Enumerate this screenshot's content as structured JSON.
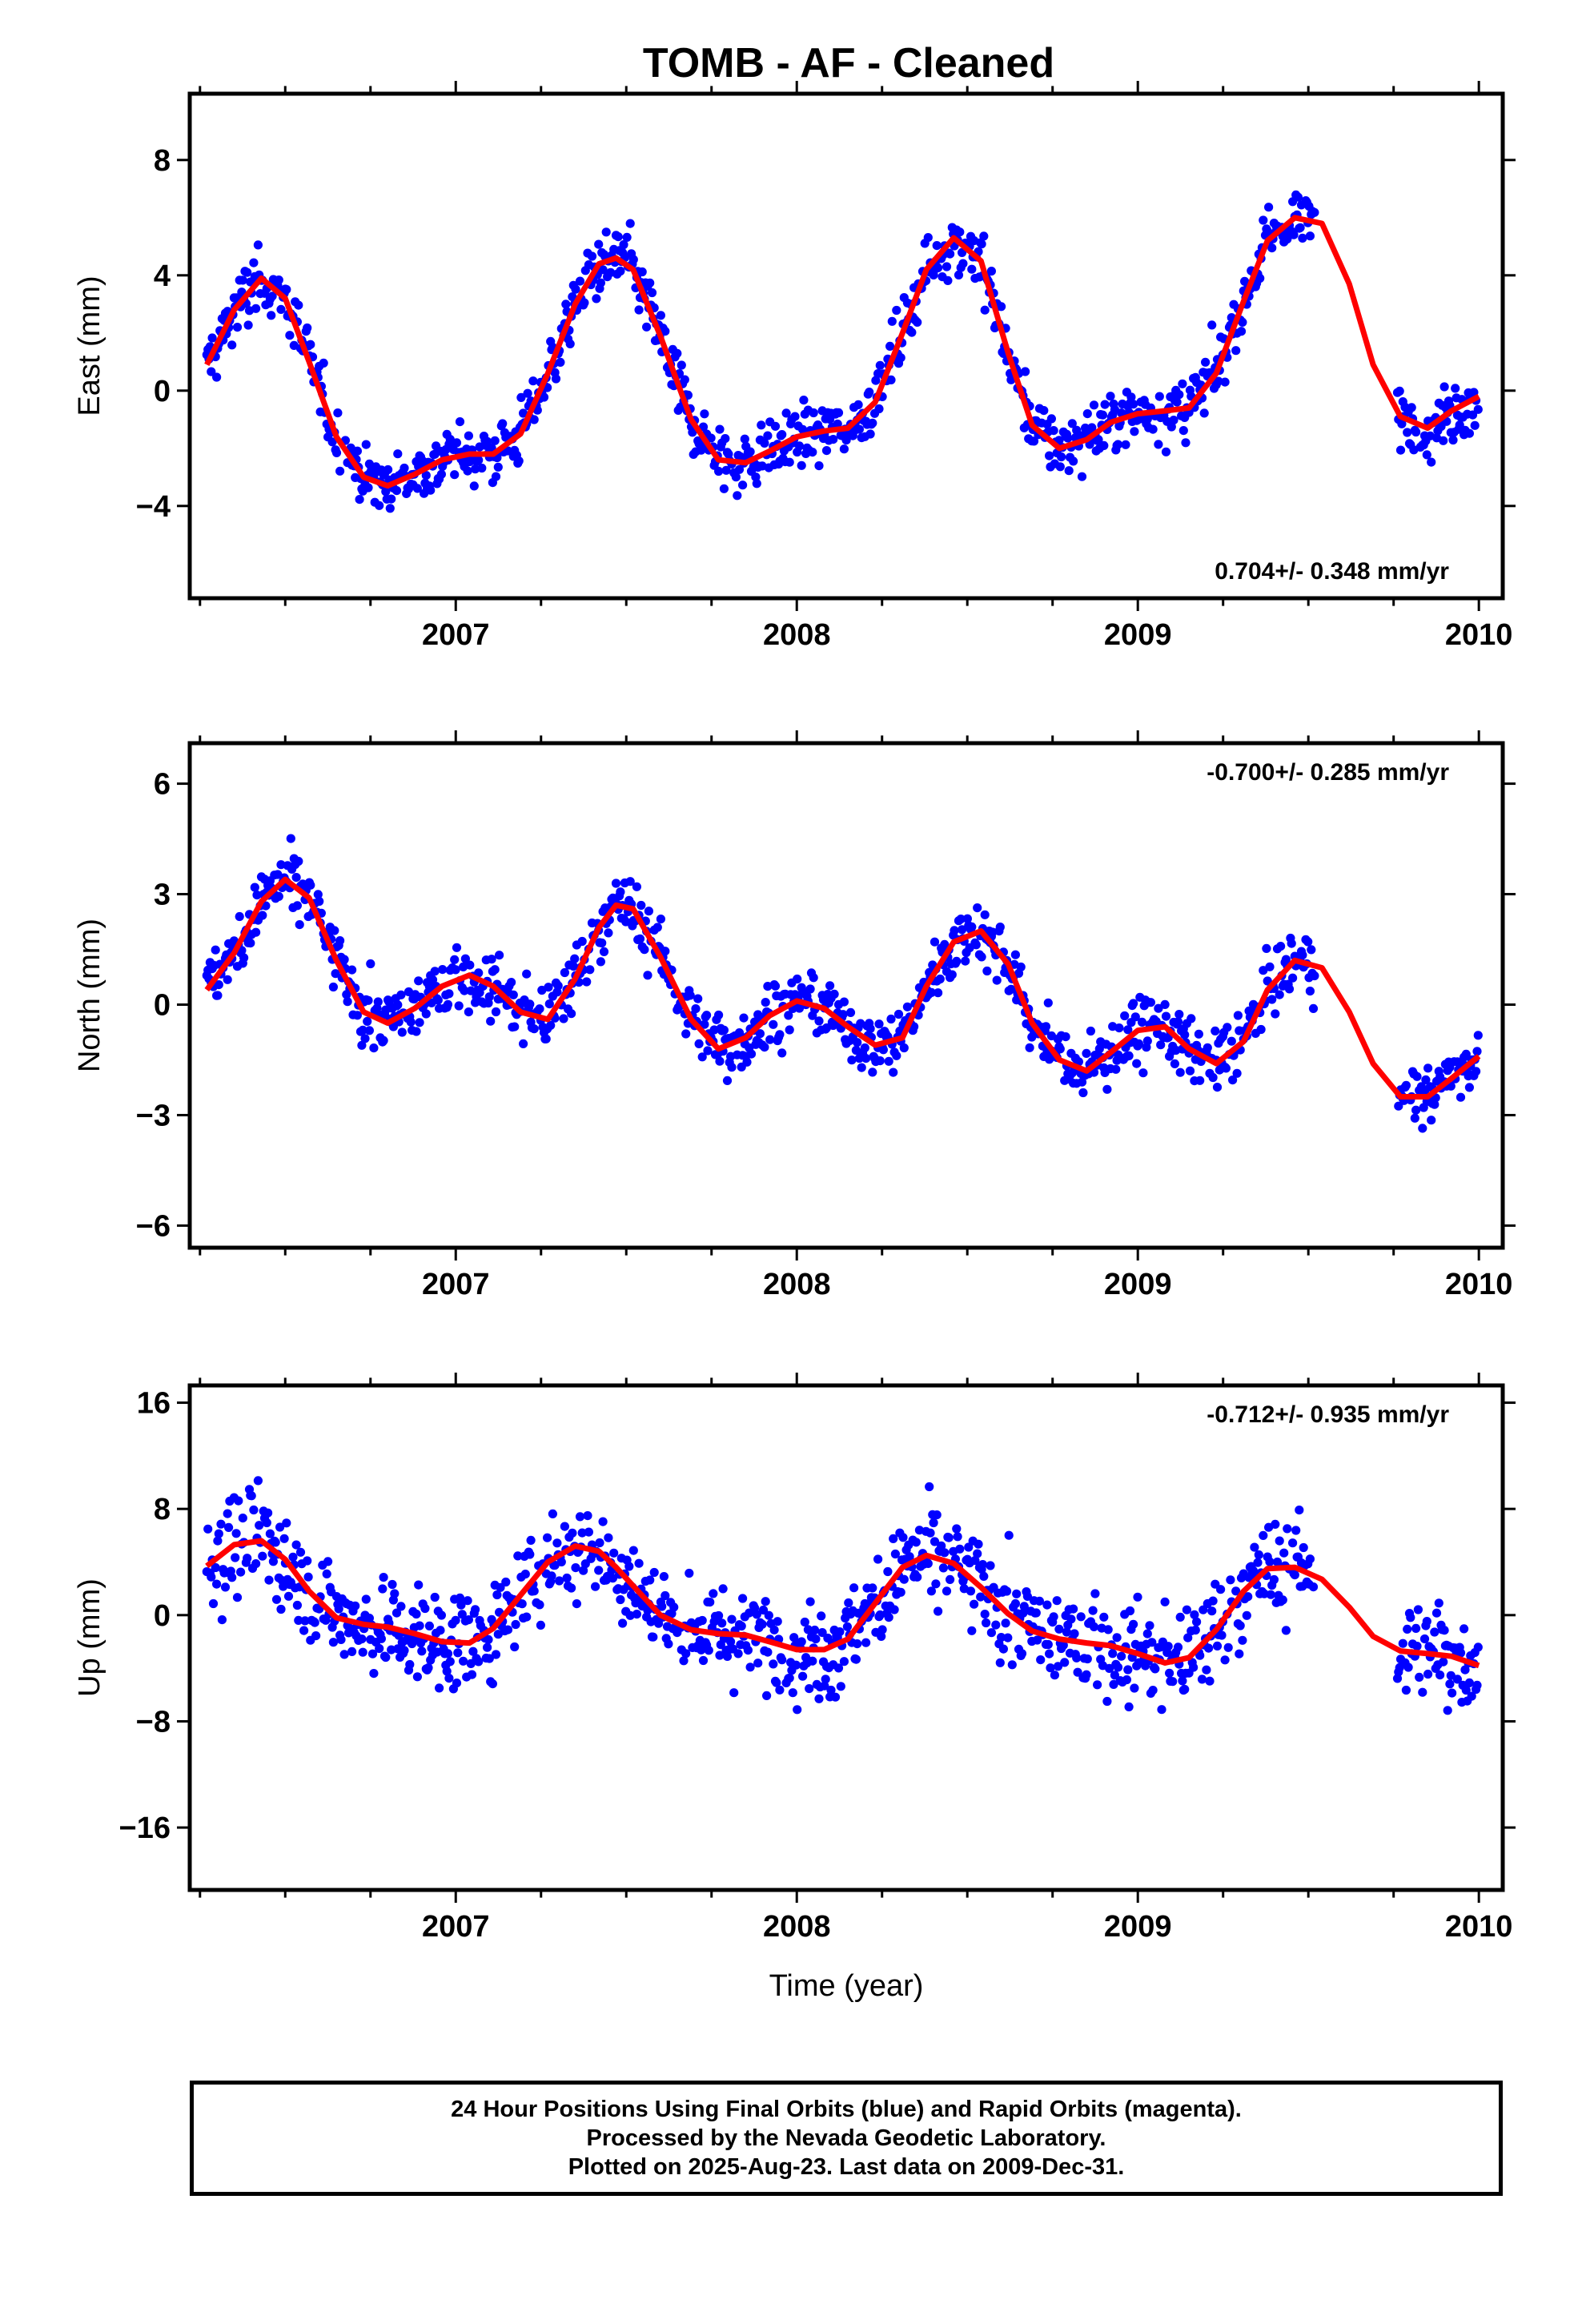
{
  "title": "TOMB  - AF - Cleaned",
  "colors": {
    "final_orbits": "#0000ff",
    "fit_line": "#ff0000",
    "frame": "#000000"
  },
  "footer": {
    "line1": "24 Hour Positions Using Final Orbits (blue) and Rapid Orbits (magenta).",
    "line2": "Processed by the Nevada Geodetic Laboratory.",
    "line3": "Plotted on 2025-Aug-23. Last data on 2009-Dec-31."
  },
  "chart_data": [
    {
      "type": "scatter",
      "name": "east",
      "ylabel": "East (mm)",
      "xlabel": "",
      "xlim": [
        2006.22,
        2010.07
      ],
      "ylim": [
        -7.2,
        10.3
      ],
      "yticks": [
        -4,
        0,
        4,
        8
      ],
      "xticks": [
        2007,
        2008,
        2009,
        2010
      ],
      "rate": "0.704+/- 0.348 mm/yr",
      "rate_position": "bottom-right",
      "fit_x": [
        2006.27,
        2006.35,
        2006.43,
        2006.5,
        2006.57,
        2006.65,
        2006.73,
        2006.8,
        2006.88,
        2006.96,
        2007.04,
        2007.11,
        2007.19,
        2007.27,
        2007.35,
        2007.42,
        2007.47,
        2007.52,
        2007.6,
        2007.69,
        2007.77,
        2007.85,
        2007.92,
        2008.0,
        2008.08,
        2008.15,
        2008.23,
        2008.31,
        2008.38,
        2008.46,
        2008.54,
        2008.62,
        2008.69,
        2008.77,
        2008.85,
        2008.92,
        2009.0,
        2009.08,
        2009.15,
        2009.23,
        2009.31,
        2009.38,
        2009.46,
        2009.54,
        2009.62,
        2009.69,
        2009.77,
        2009.85,
        2009.92,
        2010.0
      ],
      "fit_y": [
        0.9,
        2.8,
        3.9,
        3.2,
        1.0,
        -1.6,
        -3.0,
        -3.3,
        -2.9,
        -2.4,
        -2.2,
        -2.2,
        -1.5,
        0.6,
        3.0,
        4.4,
        4.6,
        4.2,
        1.9,
        -1.0,
        -2.4,
        -2.5,
        -2.1,
        -1.6,
        -1.4,
        -1.3,
        -0.4,
        2.0,
        4.2,
        5.3,
        4.5,
        1.3,
        -1.2,
        -2.0,
        -1.7,
        -1.1,
        -0.8,
        -0.7,
        -0.6,
        0.6,
        3.1,
        5.2,
        6.0,
        5.8,
        3.7,
        0.9,
        -0.9,
        -1.3,
        -0.7,
        -0.2
      ]
    },
    {
      "type": "scatter",
      "name": "north",
      "ylabel": "North (mm)",
      "xlabel": "",
      "xlim": [
        2006.22,
        2010.07
      ],
      "ylim": [
        -6.6,
        7.1
      ],
      "yticks": [
        -6,
        -3,
        0,
        3,
        6
      ],
      "xticks": [
        2007,
        2008,
        2009,
        2010
      ],
      "rate": "-0.700+/- 0.285 mm/yr",
      "rate_position": "top-right",
      "fit_x": [
        2006.27,
        2006.35,
        2006.43,
        2006.5,
        2006.57,
        2006.65,
        2006.73,
        2006.8,
        2006.88,
        2006.96,
        2007.04,
        2007.11,
        2007.19,
        2007.27,
        2007.35,
        2007.42,
        2007.47,
        2007.52,
        2007.6,
        2007.69,
        2007.77,
        2007.85,
        2007.92,
        2008.0,
        2008.08,
        2008.15,
        2008.23,
        2008.31,
        2008.38,
        2008.46,
        2008.54,
        2008.62,
        2008.69,
        2008.77,
        2008.85,
        2008.92,
        2009.0,
        2009.08,
        2009.15,
        2009.23,
        2009.31,
        2009.38,
        2009.46,
        2009.54,
        2009.62,
        2009.69,
        2009.77,
        2009.85,
        2009.92,
        2010.0
      ],
      "fit_y": [
        0.4,
        1.4,
        2.8,
        3.4,
        2.9,
        1.2,
        -0.2,
        -0.5,
        -0.1,
        0.5,
        0.8,
        0.5,
        -0.2,
        -0.4,
        0.7,
        2.1,
        2.7,
        2.6,
        1.3,
        -0.4,
        -1.2,
        -0.9,
        -0.3,
        0.1,
        -0.1,
        -0.6,
        -1.1,
        -0.9,
        0.5,
        1.7,
        2.0,
        1.1,
        -0.5,
        -1.5,
        -1.8,
        -1.3,
        -0.7,
        -0.6,
        -1.2,
        -1.6,
        -1.0,
        0.4,
        1.2,
        1.0,
        -0.2,
        -1.6,
        -2.5,
        -2.5,
        -2.0,
        -1.4
      ]
    },
    {
      "type": "scatter",
      "name": "up",
      "ylabel": "Up (mm)",
      "xlabel": "Time (year)",
      "xlim": [
        2006.22,
        2010.07
      ],
      "ylim": [
        -20.7,
        17.3
      ],
      "yticks": [
        -16,
        -8,
        0,
        8,
        16
      ],
      "xticks": [
        2007,
        2008,
        2009,
        2010
      ],
      "rate": "-0.712+/- 0.935 mm/yr",
      "rate_position": "top-right",
      "fit_x": [
        2006.27,
        2006.35,
        2006.43,
        2006.5,
        2006.57,
        2006.65,
        2006.73,
        2006.8,
        2006.88,
        2006.96,
        2007.04,
        2007.11,
        2007.19,
        2007.27,
        2007.35,
        2007.42,
        2007.47,
        2007.52,
        2007.6,
        2007.69,
        2007.77,
        2007.85,
        2007.92,
        2008.0,
        2008.08,
        2008.15,
        2008.23,
        2008.31,
        2008.38,
        2008.46,
        2008.54,
        2008.62,
        2008.69,
        2008.77,
        2008.85,
        2008.92,
        2009.0,
        2009.08,
        2009.15,
        2009.23,
        2009.31,
        2009.38,
        2009.46,
        2009.54,
        2009.62,
        2009.69,
        2009.77,
        2009.85,
        2009.92,
        2010.0
      ],
      "fit_y": [
        3.7,
        5.3,
        5.6,
        4.2,
        1.8,
        -0.2,
        -0.7,
        -0.9,
        -1.4,
        -2.0,
        -2.1,
        -1.0,
        1.5,
        4.0,
        5.2,
        4.8,
        3.6,
        2.2,
        0.0,
        -1.1,
        -1.4,
        -1.5,
        -2.0,
        -2.6,
        -2.6,
        -1.8,
        0.9,
        3.6,
        4.5,
        3.9,
        2.1,
        0.1,
        -1.2,
        -1.8,
        -2.1,
        -2.3,
        -2.9,
        -3.6,
        -3.2,
        -1.1,
        1.8,
        3.5,
        3.6,
        2.7,
        0.6,
        -1.6,
        -2.7,
        -2.9,
        -3.1,
        -3.8
      ]
    }
  ]
}
